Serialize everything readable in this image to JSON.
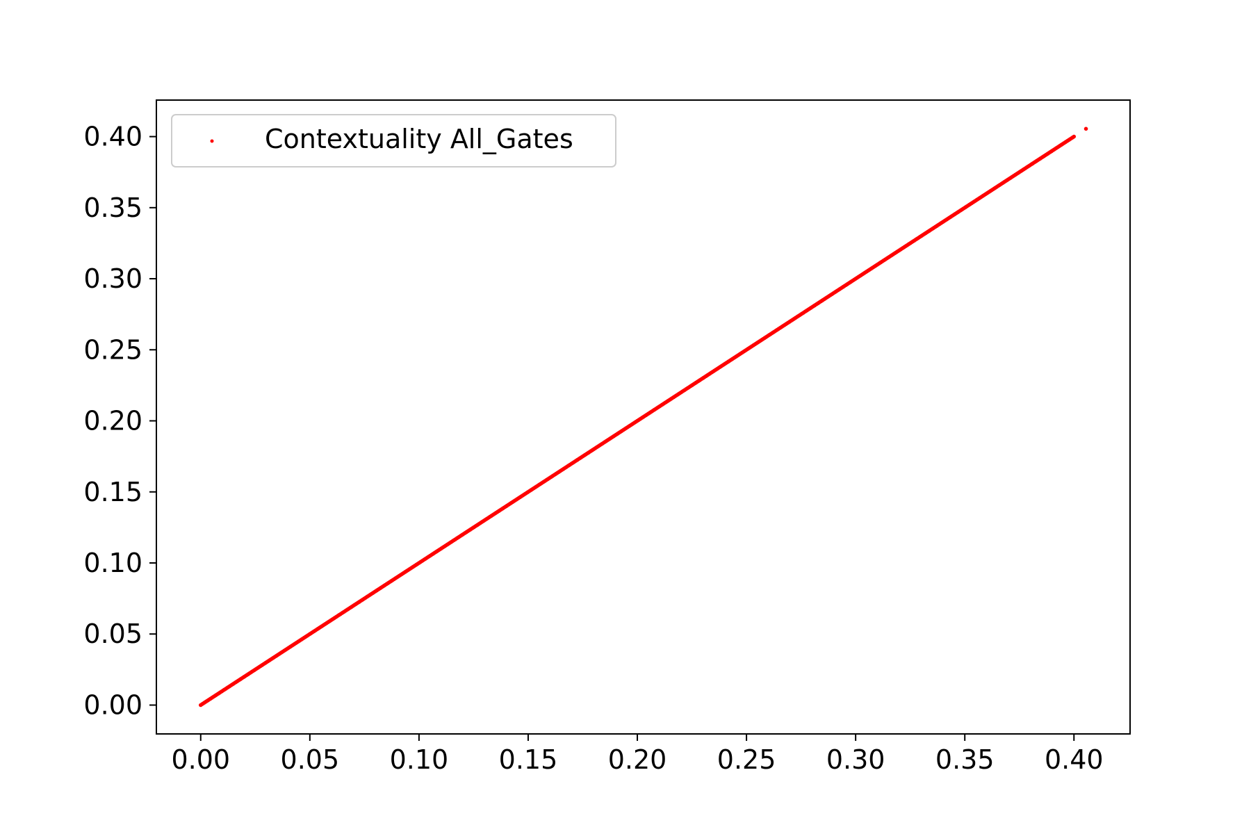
{
  "chart_data": {
    "type": "scatter",
    "title": "",
    "xlabel": "",
    "ylabel": "",
    "xlim": [
      -0.0203,
      0.4257
    ],
    "ylim": [
      -0.0203,
      0.4257
    ],
    "xticks": [
      0.0,
      0.05,
      0.1,
      0.15,
      0.2,
      0.25,
      0.3,
      0.35,
      0.4
    ],
    "yticks": [
      0.0,
      0.05,
      0.1,
      0.15,
      0.2,
      0.25,
      0.3,
      0.35,
      0.4
    ],
    "xtick_labels": [
      "0.00",
      "0.05",
      "0.10",
      "0.15",
      "0.20",
      "0.25",
      "0.30",
      "0.35",
      "0.40"
    ],
    "ytick_labels": [
      "0.00",
      "0.05",
      "0.10",
      "0.15",
      "0.20",
      "0.25",
      "0.30",
      "0.35",
      "0.40"
    ],
    "grid": false,
    "legend": {
      "position": "top-left",
      "label": "Contextuality All_Gates"
    },
    "series": [
      {
        "name": "Contextuality All_Gates",
        "color": "#ff0000",
        "relation": "y = x",
        "x_range": [
          0.0,
          0.4
        ],
        "outliers": [
          [
            0.4055,
            0.4055
          ]
        ]
      }
    ]
  }
}
